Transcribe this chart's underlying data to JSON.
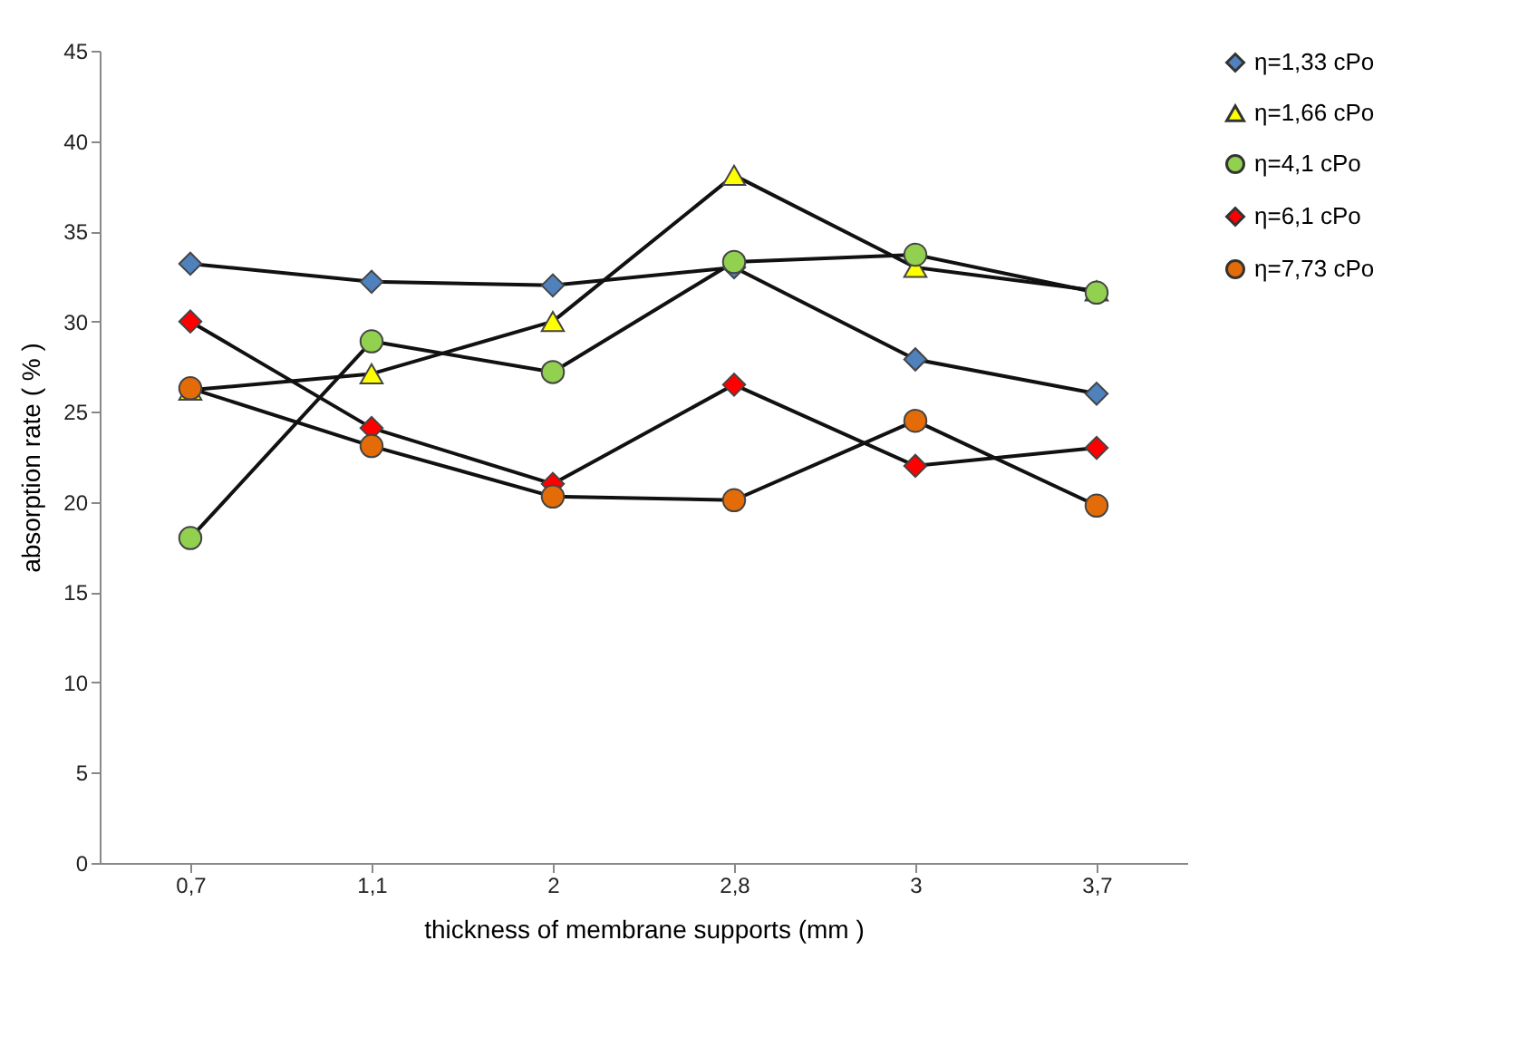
{
  "chart_data": {
    "type": "line",
    "xlabel": "thickness of membrane supports (mm )",
    "ylabel": "absorption rate  ( % )",
    "categories": [
      "0,7",
      "1,1",
      "2",
      "2,8",
      "3",
      "3,7"
    ],
    "ylim": [
      0,
      45
    ],
    "yticks": [
      0,
      5,
      10,
      15,
      20,
      25,
      30,
      35,
      40,
      45
    ],
    "grid": false,
    "legend": "right",
    "series": [
      {
        "name": "η=1,33 cPo",
        "color": "#4f81bd",
        "marker": "diamond",
        "values": [
          33.2,
          32.2,
          32.0,
          33.0,
          27.9,
          26.0
        ]
      },
      {
        "name": "η=1,66 cPo",
        "color": "#ffff00",
        "marker": "triangle",
        "values": [
          26.2,
          27.1,
          30.0,
          38.1,
          33.0,
          31.7
        ]
      },
      {
        "name": "η=4,1 cPo",
        "color": "#92d050",
        "marker": "circle",
        "values": [
          18.0,
          28.9,
          27.2,
          33.3,
          33.7,
          31.6
        ]
      },
      {
        "name": "η=6,1 cPo",
        "color": "#ff0000",
        "marker": "diamond",
        "values": [
          30.0,
          24.1,
          21.0,
          26.5,
          22.0,
          23.0
        ]
      },
      {
        "name": "η=7,73 cPo",
        "color": "#e36c09",
        "marker": "circle",
        "values": [
          26.3,
          23.1,
          20.3,
          20.1,
          24.5,
          19.8
        ]
      }
    ]
  }
}
